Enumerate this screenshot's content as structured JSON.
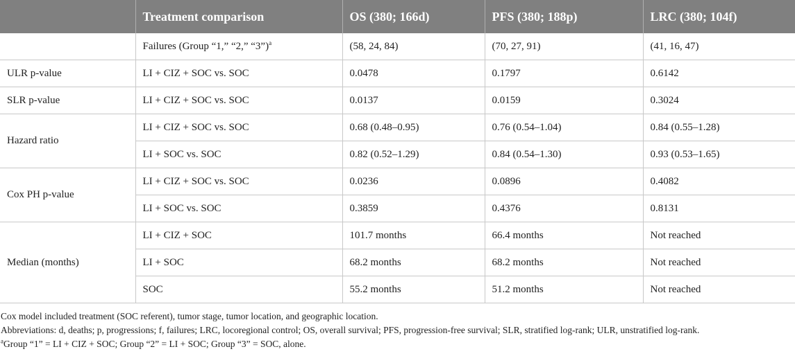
{
  "table": {
    "headers": [
      "",
      "Treatment comparison",
      "OS (380; 166d)",
      "PFS (380; 188p)",
      "LRC (380; 104f)"
    ],
    "failures_row": {
      "comparison": "Failures (Group “1,” “2,” “3”)",
      "comparison_sup": "a",
      "os": "(58, 24, 84)",
      "pfs": "(70, 27, 91)",
      "lrc": "(41, 16, 47)"
    },
    "ulr": {
      "label": "ULR p-value",
      "rows": [
        {
          "comparison": "LI + CIZ + SOC vs. SOC",
          "os": "0.0478",
          "pfs": "0.1797",
          "lrc": "0.6142"
        }
      ]
    },
    "slr": {
      "label": "SLR p-value",
      "rows": [
        {
          "comparison": "LI + CIZ + SOC vs. SOC",
          "os": "0.0137",
          "pfs": "0.0159",
          "lrc": "0.3024"
        }
      ]
    },
    "hazard": {
      "label": "Hazard ratio",
      "rows": [
        {
          "comparison": "LI + CIZ + SOC vs. SOC",
          "os": "0.68 (0.48–0.95)",
          "pfs": "0.76 (0.54–1.04)",
          "lrc": "0.84 (0.55–1.28)"
        },
        {
          "comparison": "LI + SOC vs. SOC",
          "os": "0.82 (0.52–1.29)",
          "pfs": "0.84 (0.54–1.30)",
          "lrc": "0.93 (0.53–1.65)"
        }
      ]
    },
    "coxph": {
      "label": "Cox PH p-value",
      "rows": [
        {
          "comparison": "LI + CIZ + SOC vs. SOC",
          "os": "0.0236",
          "pfs": "0.0896",
          "lrc": "0.4082"
        },
        {
          "comparison": "LI + SOC vs. SOC",
          "os": "0.3859",
          "pfs": "0.4376",
          "lrc": "0.8131"
        }
      ]
    },
    "median": {
      "label": "Median (months)",
      "rows": [
        {
          "comparison": "LI + CIZ + SOC",
          "os": "101.7 months",
          "pfs": "66.4 months",
          "lrc": "Not reached"
        },
        {
          "comparison": "LI + SOC",
          "os": "68.2 months",
          "pfs": "68.2 months",
          "lrc": "Not reached"
        },
        {
          "comparison": "SOC",
          "os": "55.2 months",
          "pfs": "51.2 months",
          "lrc": "Not reached"
        }
      ]
    }
  },
  "footnotes": {
    "line1": "Cox model included treatment (SOC referent), tumor stage, tumor location, and geographic location.",
    "line2": "Abbreviations: d, deaths; p, progressions; f, failures; LRC, locoregional control; OS, overall survival; PFS, progression-free survival; SLR, stratified log-rank; ULR, unstratified log-rank.",
    "line3_sup": "a",
    "line3": "Group “1” = LI + CIZ + SOC; Group “2” = LI + SOC; Group “3” = SOC, alone."
  },
  "colors": {
    "header_bg": "#808080",
    "header_text": "#ffffff",
    "rule": "#c8c8c8"
  }
}
